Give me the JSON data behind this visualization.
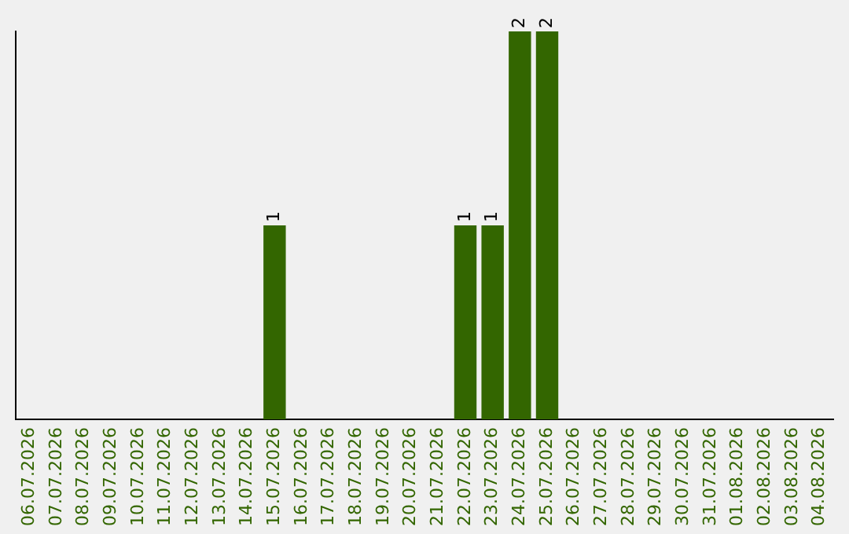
{
  "chart_data": {
    "type": "bar",
    "categories": [
      "06.07.2026",
      "07.07.2026",
      "08.07.2026",
      "09.07.2026",
      "10.07.2026",
      "11.07.2026",
      "12.07.2026",
      "13.07.2026",
      "14.07.2026",
      "15.07.2026",
      "16.07.2026",
      "17.07.2026",
      "18.07.2026",
      "19.07.2026",
      "20.07.2026",
      "21.07.2026",
      "22.07.2026",
      "23.07.2026",
      "24.07.2026",
      "25.07.2026",
      "26.07.2026",
      "27.07.2026",
      "28.07.2026",
      "29.07.2026",
      "30.07.2026",
      "31.07.2026",
      "01.08.2026",
      "02.08.2026",
      "03.08.2026",
      "04.08.2026"
    ],
    "values": [
      0,
      0,
      0,
      0,
      0,
      0,
      0,
      0,
      0,
      1,
      0,
      0,
      0,
      0,
      0,
      0,
      1,
      1,
      2,
      2,
      0,
      0,
      0,
      0,
      0,
      0,
      0,
      0,
      0,
      0
    ],
    "value_labels": [
      null,
      null,
      null,
      null,
      null,
      null,
      null,
      null,
      null,
      "1",
      null,
      null,
      null,
      null,
      null,
      null,
      "1",
      "1",
      "2",
      "2",
      null,
      null,
      null,
      null,
      null,
      null,
      null,
      null,
      null,
      null
    ],
    "color": "#336600",
    "grid": false,
    "legend": false,
    "tick_labels": "x"
  }
}
